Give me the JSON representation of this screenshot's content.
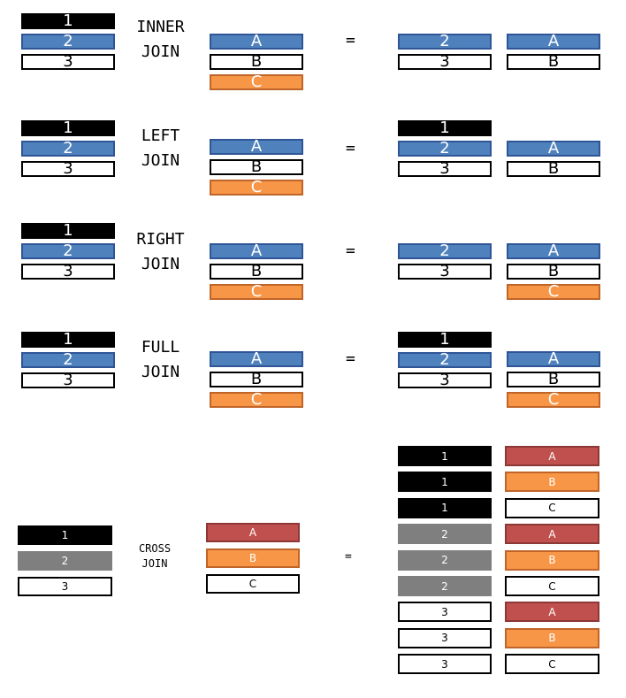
{
  "colors": {
    "black": "#000000",
    "blue": "#4f81bd",
    "white": "#ffffff",
    "orange": "#f79646",
    "red": "#c0504d",
    "gray": "#7f7f7f"
  },
  "equals_sign": "=",
  "sections": [
    {
      "name": "inner-join",
      "title": [
        "INNER",
        "JOIN"
      ],
      "left_table": [
        {
          "text": "1",
          "color": "black"
        },
        {
          "text": "2",
          "color": "blue"
        },
        {
          "text": "3",
          "color": "white"
        }
      ],
      "right_table": [
        {
          "text": "A",
          "color": "blue"
        },
        {
          "text": "B",
          "color": "white"
        },
        {
          "text": "C",
          "color": "orange"
        }
      ],
      "result_left": [
        {
          "text": "2",
          "color": "blue"
        },
        {
          "text": "3",
          "color": "white"
        }
      ],
      "result_right": [
        {
          "text": "A",
          "color": "blue"
        },
        {
          "text": "B",
          "color": "white"
        }
      ]
    },
    {
      "name": "left-join",
      "title": [
        "LEFT",
        "JOIN"
      ],
      "left_table": [
        {
          "text": "1",
          "color": "black"
        },
        {
          "text": "2",
          "color": "blue"
        },
        {
          "text": "3",
          "color": "white"
        }
      ],
      "right_table": [
        {
          "text": "A",
          "color": "blue"
        },
        {
          "text": "B",
          "color": "white"
        },
        {
          "text": "C",
          "color": "orange"
        }
      ],
      "result_left": [
        {
          "text": "1",
          "color": "black"
        },
        {
          "text": "2",
          "color": "blue"
        },
        {
          "text": "3",
          "color": "white"
        }
      ],
      "result_right": [
        {
          "text": "A",
          "color": "blue"
        },
        {
          "text": "B",
          "color": "white"
        }
      ]
    },
    {
      "name": "right-join",
      "title": [
        "RIGHT",
        "JOIN"
      ],
      "left_table": [
        {
          "text": "1",
          "color": "black"
        },
        {
          "text": "2",
          "color": "blue"
        },
        {
          "text": "3",
          "color": "white"
        }
      ],
      "right_table": [
        {
          "text": "A",
          "color": "blue"
        },
        {
          "text": "B",
          "color": "white"
        },
        {
          "text": "C",
          "color": "orange"
        }
      ],
      "result_left": [
        {
          "text": "2",
          "color": "blue"
        },
        {
          "text": "3",
          "color": "white"
        }
      ],
      "result_right": [
        {
          "text": "A",
          "color": "blue"
        },
        {
          "text": "B",
          "color": "white"
        },
        {
          "text": "C",
          "color": "orange"
        }
      ]
    },
    {
      "name": "full-join",
      "title": [
        "FULL",
        "JOIN"
      ],
      "left_table": [
        {
          "text": "1",
          "color": "black"
        },
        {
          "text": "2",
          "color": "blue"
        },
        {
          "text": "3",
          "color": "white"
        }
      ],
      "right_table": [
        {
          "text": "A",
          "color": "blue"
        },
        {
          "text": "B",
          "color": "white"
        },
        {
          "text": "C",
          "color": "orange"
        }
      ],
      "result_left": [
        {
          "text": "1",
          "color": "black"
        },
        {
          "text": "2",
          "color": "blue"
        },
        {
          "text": "3",
          "color": "white"
        }
      ],
      "result_right": [
        {
          "text": "A",
          "color": "blue"
        },
        {
          "text": "B",
          "color": "white"
        },
        {
          "text": "C",
          "color": "orange"
        }
      ]
    },
    {
      "name": "cross-join",
      "title": [
        "CROSS",
        "JOIN"
      ],
      "left_table": [
        {
          "text": "1",
          "color": "black"
        },
        {
          "text": "2",
          "color": "gray"
        },
        {
          "text": "3",
          "color": "white"
        }
      ],
      "right_table": [
        {
          "text": "A",
          "color": "red"
        },
        {
          "text": "B",
          "color": "orange"
        },
        {
          "text": "C",
          "color": "white"
        }
      ],
      "result_left": [
        {
          "text": "1",
          "color": "black"
        },
        {
          "text": "1",
          "color": "black"
        },
        {
          "text": "1",
          "color": "black"
        },
        {
          "text": "2",
          "color": "gray"
        },
        {
          "text": "2",
          "color": "gray"
        },
        {
          "text": "2",
          "color": "gray"
        },
        {
          "text": "3",
          "color": "white"
        },
        {
          "text": "3",
          "color": "white"
        },
        {
          "text": "3",
          "color": "white"
        }
      ],
      "result_right": [
        {
          "text": "A",
          "color": "red"
        },
        {
          "text": "B",
          "color": "orange"
        },
        {
          "text": "C",
          "color": "white"
        },
        {
          "text": "A",
          "color": "red"
        },
        {
          "text": "B",
          "color": "orange"
        },
        {
          "text": "C",
          "color": "white"
        },
        {
          "text": "A",
          "color": "red"
        },
        {
          "text": "B",
          "color": "orange"
        },
        {
          "text": "C",
          "color": "white"
        }
      ]
    }
  ]
}
